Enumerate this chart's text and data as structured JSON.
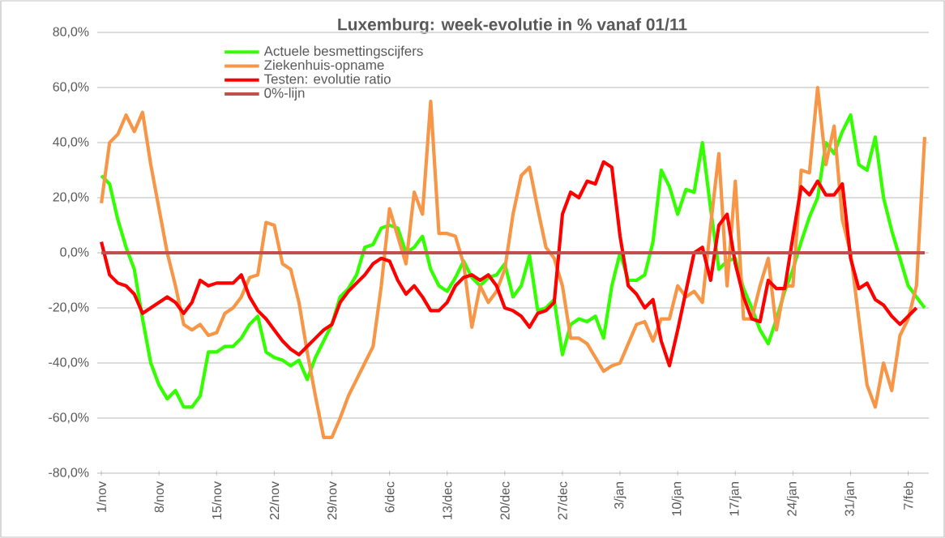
{
  "chart_data": {
    "type": "line",
    "title": "Luxemburg: week-evolutie in %  vanaf 01/11",
    "categories": [
      "1/nov",
      null,
      null,
      null,
      null,
      null,
      null,
      "8/nov",
      null,
      null,
      null,
      null,
      null,
      null,
      "15/nov",
      null,
      null,
      null,
      null,
      null,
      null,
      "22/nov",
      null,
      null,
      null,
      null,
      null,
      null,
      "29/nov",
      null,
      null,
      null,
      null,
      null,
      null,
      "6/dec",
      null,
      null,
      null,
      null,
      null,
      null,
      "13/dec",
      null,
      null,
      null,
      null,
      null,
      null,
      "20/dec",
      null,
      null,
      null,
      null,
      null,
      null,
      "27/dec",
      null,
      null,
      null,
      null,
      null,
      null,
      "3/jan",
      null,
      null,
      null,
      null,
      null,
      null,
      "10/jan",
      null,
      null,
      null,
      null,
      null,
      null,
      "17/jan",
      null,
      null,
      null,
      null,
      null,
      null,
      "24/jan",
      null,
      null,
      null,
      null,
      null,
      null,
      "31/jan",
      null,
      null,
      null,
      null,
      null,
      null,
      "7/feb",
      null,
      null
    ],
    "series": [
      {
        "name": "Actuele besmettingscijfers",
        "color": "#33ff00",
        "values": [
          28,
          25,
          12,
          2,
          -6,
          -24,
          -40,
          -48,
          -53,
          -50,
          -56,
          -56,
          -52,
          -36,
          -36,
          -34,
          -34,
          -31,
          -26,
          -23,
          -36,
          -38,
          -39,
          -41,
          -39,
          -46,
          -38,
          -32,
          -26,
          -16,
          -13,
          -8,
          2,
          3,
          9,
          10,
          9,
          0,
          2,
          6,
          -6,
          -12,
          -14,
          -9,
          -3,
          -9,
          -12,
          -9,
          -8,
          -4,
          -16,
          -12,
          -1,
          -21,
          -20,
          -17,
          -37,
          -26,
          -24,
          -25,
          -23,
          -31,
          -12,
          0,
          -10,
          -10,
          -8,
          4,
          30,
          24,
          14,
          23,
          22,
          40,
          16,
          -6,
          -3,
          -2,
          -13,
          -20,
          -28,
          -33,
          -24,
          -14,
          -6,
          4,
          13,
          20,
          40,
          36,
          44,
          50,
          32,
          30,
          42,
          20,
          8,
          -2,
          -12,
          -16,
          -20
        ]
      },
      {
        "name": "Ziekenhuis-opname",
        "color": "#f79646",
        "values": [
          18,
          40,
          43,
          50,
          44,
          51,
          32,
          16,
          0,
          -12,
          -26,
          -28,
          -26,
          -30,
          -29,
          -22,
          -20,
          -16,
          -9,
          -8,
          11,
          10,
          -4,
          -6,
          -18,
          -36,
          -52,
          -67,
          -67,
          -60,
          -52,
          -46,
          -40,
          -34,
          -12,
          16,
          6,
          -4,
          22,
          14,
          55,
          7,
          7,
          6,
          -4,
          -27,
          -12,
          -18,
          -14,
          -6,
          14,
          28,
          31,
          16,
          2,
          -2,
          -12,
          -31,
          -31,
          -33,
          -38,
          -43,
          -41,
          -40,
          -33,
          -26,
          -25,
          -32,
          -24,
          -24,
          -12,
          -16,
          -14,
          -18,
          10,
          36,
          -12,
          26,
          -24,
          -24,
          -12,
          -2,
          -28,
          -12,
          -12,
          30,
          29,
          60,
          32,
          46,
          12,
          0,
          -24,
          -48,
          -56,
          -40,
          -50,
          -30,
          -24,
          -12,
          42
        ]
      },
      {
        "name": "Testen: evolutie ratio",
        "color": "#ff0000",
        "values": [
          4,
          -8,
          -11,
          -12,
          -15,
          -22,
          -20,
          -18,
          -16,
          -18,
          -22,
          -18,
          -10,
          -12,
          -11,
          -11,
          -11,
          -8,
          -16,
          -21,
          -24,
          -28,
          -32,
          -35,
          -37,
          -34,
          -31,
          -28,
          -26,
          -18,
          -14,
          -11,
          -8,
          -4,
          -2,
          -3,
          -10,
          -15,
          -12,
          -16,
          -21,
          -21,
          -18,
          -12,
          -9,
          -8,
          -10,
          -8,
          -12,
          -20,
          -21,
          -23,
          -27,
          -22,
          -21,
          -18,
          14,
          22,
          20,
          26,
          25,
          33,
          31,
          6,
          -12,
          -15,
          -20,
          -17,
          -32,
          -41,
          -28,
          -14,
          0,
          2,
          -10,
          10,
          14,
          -4,
          -16,
          -24,
          -25,
          -10,
          -13,
          -13,
          6,
          24,
          21,
          26,
          21,
          21,
          25,
          -2,
          -13,
          -11,
          -17,
          -19,
          -23,
          -26,
          -23,
          -20,
          null
        ]
      },
      {
        "name": "0%-lijn",
        "color": "#c0504d",
        "values": [
          0,
          0,
          0,
          0,
          0,
          0,
          0,
          0,
          0,
          0,
          0,
          0,
          0,
          0,
          0,
          0,
          0,
          0,
          0,
          0,
          0,
          0,
          0,
          0,
          0,
          0,
          0,
          0,
          0,
          0,
          0,
          0,
          0,
          0,
          0,
          0,
          0,
          0,
          0,
          0,
          0,
          0,
          0,
          0,
          0,
          0,
          0,
          0,
          0,
          0,
          0,
          0,
          0,
          0,
          0,
          0,
          0,
          0,
          0,
          0,
          0,
          0,
          0,
          0,
          0,
          0,
          0,
          0,
          0,
          0,
          0,
          0,
          0,
          0,
          0,
          0,
          0,
          0,
          0,
          0,
          0,
          0,
          0,
          0,
          0,
          0,
          0,
          0,
          0,
          0,
          0,
          0,
          0,
          0,
          0,
          0,
          0,
          0,
          0,
          0,
          0
        ]
      }
    ],
    "ylim": [
      -80,
      80
    ],
    "yticks": [
      {
        "value": -80,
        "label": "-80,0%"
      },
      {
        "value": -60,
        "label": "-60,0%"
      },
      {
        "value": -40,
        "label": "-40,0%"
      },
      {
        "value": -20,
        "label": "-20,0%"
      },
      {
        "value": 0,
        "label": "0,0%"
      },
      {
        "value": 20,
        "label": "20,0%"
      },
      {
        "value": 40,
        "label": "40,0%"
      },
      {
        "value": 60,
        "label": "60,0%"
      },
      {
        "value": 80,
        "label": "80,0%"
      }
    ],
    "grid": "y",
    "legend": "top left",
    "marker": "none",
    "line_style": "solid"
  }
}
